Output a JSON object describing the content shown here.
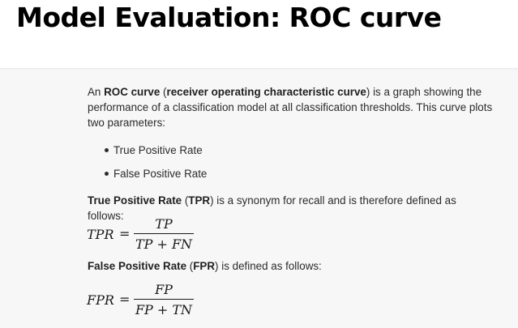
{
  "page": {
    "title": "Model Evaluation: ROC curve"
  },
  "intro": {
    "p1_lead": "An ",
    "p1_term": "ROC curve",
    "p1_open": " (",
    "p1_full": "receiver operating characteristic curve",
    "p1_rest": ") is a graph showing the performance of a classification model at all classification thresholds. This curve plots two parameters:"
  },
  "bullets": [
    {
      "label": "True Positive Rate"
    },
    {
      "label": "False Positive Rate"
    }
  ],
  "tpr": {
    "term": "True Positive Rate",
    "abbr_open": " (",
    "abbr": "TPR",
    "rest": ") is a synonym for recall and is therefore defined as follows:",
    "lhs": "TPR",
    "eq": "=",
    "numerator": "TP",
    "denominator": "TP + FN"
  },
  "fpr": {
    "term": "False Positive Rate",
    "abbr_open": " (",
    "abbr": "FPR",
    "rest": ") is defined as follows:",
    "lhs": "FPR",
    "eq": "=",
    "numerator": "FP",
    "denominator": "FP + TN"
  }
}
